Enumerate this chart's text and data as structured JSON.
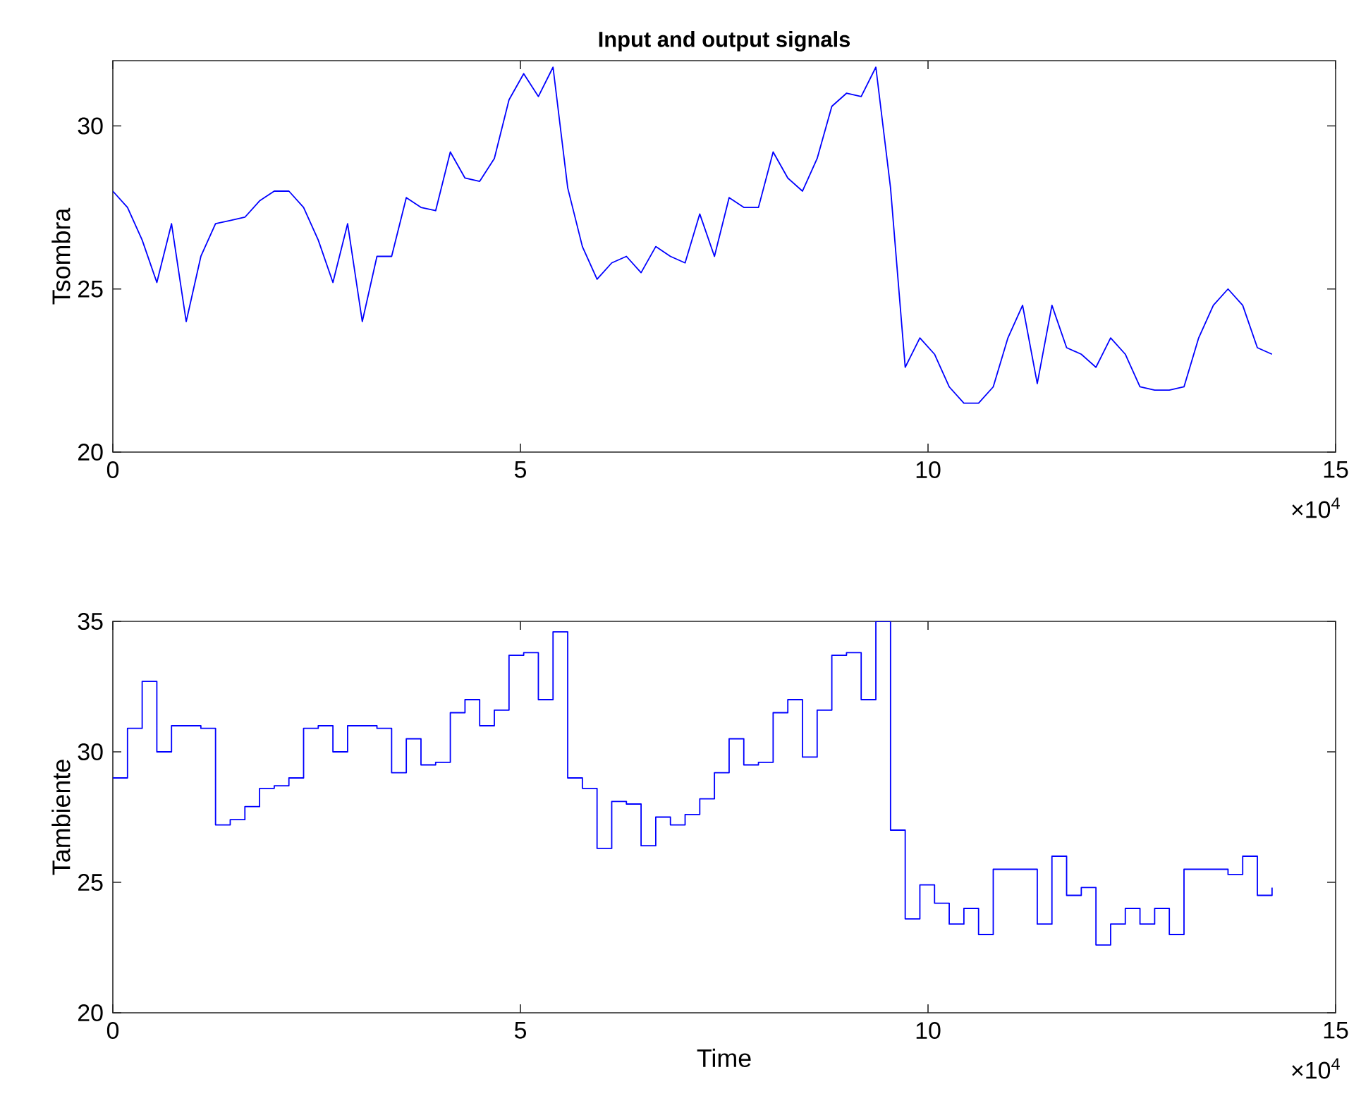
{
  "chart_data": [
    {
      "type": "line",
      "title": "Input and output signals",
      "ylabel": "Tsombra",
      "annotations": [
        "×10$^{4}$"
      ],
      "xlim": [
        0,
        15
      ],
      "xticks": [
        0,
        5,
        10,
        15
      ],
      "ylim": [
        20,
        32
      ],
      "yticks": [
        20,
        25,
        30
      ],
      "x": [
        0,
        0.18,
        0.36,
        0.54,
        0.72,
        0.9,
        1.08,
        1.26,
        1.44,
        1.62,
        1.8,
        1.98,
        2.16,
        2.34,
        2.52,
        2.7,
        2.88,
        3.06,
        3.24,
        3.42,
        3.6,
        3.78,
        3.96,
        4.14,
        4.32,
        4.5,
        4.68,
        4.86,
        5.04,
        5.22,
        5.4,
        5.58,
        5.76,
        5.94,
        6.12,
        6.3,
        6.48,
        6.66,
        6.84,
        7.02,
        7.2,
        7.38,
        7.56,
        7.74,
        7.92,
        8.1,
        8.28,
        8.46,
        8.64,
        8.82,
        9,
        9.18,
        9.36,
        9.54,
        9.72,
        9.9,
        10.08,
        10.26,
        10.44,
        10.62,
        10.8,
        10.98,
        11.16,
        11.34,
        11.52,
        11.7,
        11.88,
        12.06,
        12.24,
        12.42,
        12.6,
        12.78,
        12.96,
        13.14,
        13.32,
        13.5,
        13.68,
        13.86,
        14.04,
        14.22
      ],
      "series": [
        {
          "color": "#0000ff",
          "values": [
            28.0,
            27.5,
            26.5,
            25.2,
            27.0,
            24.0,
            26.0,
            27.0,
            27.1,
            27.2,
            27.7,
            28.0,
            28.0,
            27.5,
            26.5,
            25.2,
            27.0,
            24.0,
            26.0,
            26.0,
            27.8,
            27.5,
            27.4,
            29.2,
            28.4,
            28.3,
            29.0,
            30.8,
            31.6,
            30.9,
            31.8,
            28.1,
            26.3,
            25.3,
            25.8,
            26.0,
            25.5,
            26.3,
            26.0,
            25.8,
            27.3,
            26.0,
            27.8,
            27.5,
            27.5,
            29.2,
            28.4,
            28.0,
            29.0,
            30.6,
            31.0,
            30.9,
            31.8,
            28.1,
            22.6,
            23.5,
            23.0,
            22.0,
            21.5,
            21.5,
            22.0,
            23.5,
            24.5,
            22.1,
            24.5,
            23.2,
            23.0,
            22.6,
            23.5,
            23.0,
            22.0,
            21.9,
            21.9,
            22.0,
            23.5,
            24.5,
            25.0,
            24.5,
            23.2,
            23.0
          ]
        }
      ]
    },
    {
      "type": "step",
      "xlabel": "Time",
      "ylabel": "Tambiente",
      "annotations": [
        "×10$^{4}$"
      ],
      "xlim": [
        0,
        15
      ],
      "xticks": [
        0,
        5,
        10,
        15
      ],
      "ylim": [
        20,
        35
      ],
      "yticks": [
        20,
        25,
        30,
        35
      ],
      "x": [
        0,
        0.18,
        0.36,
        0.54,
        0.72,
        0.9,
        1.08,
        1.26,
        1.44,
        1.62,
        1.8,
        1.98,
        2.16,
        2.34,
        2.52,
        2.7,
        2.88,
        3.06,
        3.24,
        3.42,
        3.6,
        3.78,
        3.96,
        4.14,
        4.32,
        4.5,
        4.68,
        4.86,
        5.04,
        5.22,
        5.4,
        5.58,
        5.76,
        5.94,
        6.12,
        6.3,
        6.48,
        6.66,
        6.84,
        7.02,
        7.2,
        7.38,
        7.56,
        7.74,
        7.92,
        8.1,
        8.28,
        8.46,
        8.64,
        8.82,
        9,
        9.18,
        9.36,
        9.54,
        9.72,
        9.9,
        10.08,
        10.26,
        10.44,
        10.62,
        10.8,
        10.98,
        11.16,
        11.34,
        11.52,
        11.7,
        11.88,
        12.06,
        12.24,
        12.42,
        12.6,
        12.78,
        12.96,
        13.14,
        13.32,
        13.5,
        13.68,
        13.86,
        14.04,
        14.22
      ],
      "series": [
        {
          "color": "#0000ff",
          "values": [
            29.0,
            30.9,
            32.7,
            30.0,
            31.0,
            31.0,
            30.9,
            27.2,
            27.4,
            27.9,
            28.6,
            28.7,
            29.0,
            30.9,
            31.0,
            30.0,
            31.0,
            31.0,
            30.9,
            29.2,
            30.5,
            29.5,
            29.6,
            31.5,
            32.0,
            31.0,
            31.6,
            33.7,
            33.8,
            32.0,
            34.6,
            29.0,
            28.6,
            26.3,
            28.1,
            28.0,
            26.4,
            27.5,
            27.2,
            27.6,
            28.2,
            29.2,
            30.5,
            29.5,
            29.6,
            31.5,
            32.0,
            29.8,
            31.6,
            33.7,
            33.8,
            32.0,
            35,
            27.0,
            23.6,
            24.9,
            24.2,
            23.4,
            24.0,
            23.0,
            25.5,
            25.5,
            25.5,
            23.4,
            26.0,
            24.5,
            24.8,
            22.6,
            23.4,
            24.0,
            23.4,
            24.0,
            23.0,
            25.5,
            25.5,
            25.5,
            25.3,
            26.0,
            24.5,
            24.8
          ]
        }
      ]
    }
  ]
}
